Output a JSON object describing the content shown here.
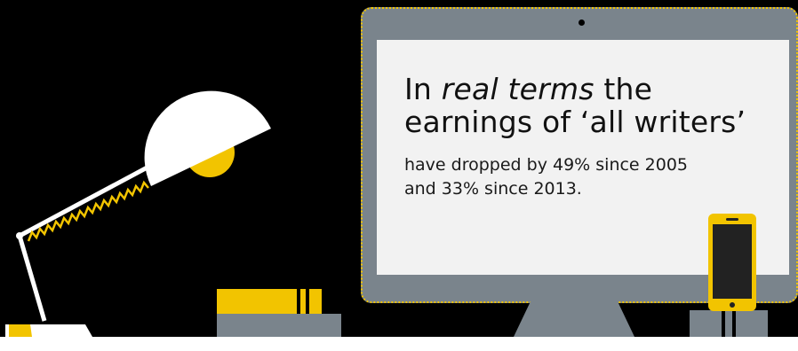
{
  "screen": {
    "headline_prefix": "In ",
    "headline_italic": "real terms",
    "headline_rest": " the",
    "headline_line2": "earnings of ‘all writers’",
    "sub_line1": "have dropped by 49% since 2005",
    "sub_line2": "and 33% since 2013."
  },
  "colors": {
    "background": "#000000",
    "accent_yellow": "#f2c400",
    "device_gray": "#7a848c",
    "screen_white": "#f2f2f2"
  },
  "icons": [
    "desk-lamp-icon",
    "monitor-icon",
    "smartphone-icon",
    "books-icon"
  ]
}
